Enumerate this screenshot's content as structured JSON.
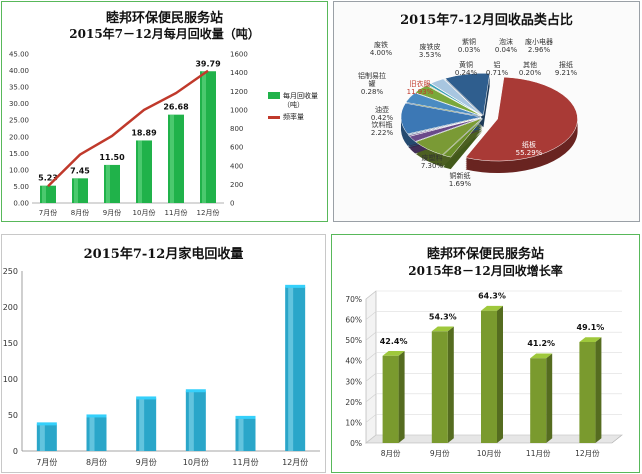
{
  "chart_data": [
    {
      "type": "bar",
      "title": "睦邦环保便民服务站",
      "subtitle": "2015年7－12月每月回收量（吨）",
      "categories": [
        "7月份",
        "8月份",
        "9月份",
        "10月份",
        "11月份",
        "12月份"
      ],
      "series": [
        {
          "name": "每月回收量（吨）",
          "values": [
            5.23,
            7.45,
            11.5,
            18.89,
            26.68,
            39.79
          ],
          "color": "#20b24a"
        },
        {
          "name": "频率量",
          "values": [
            180,
            520,
            720,
            1000,
            1180,
            1420
          ],
          "color": "#c0392b",
          "axis": "right"
        }
      ],
      "data_labels": [
        "5.23",
        "7.45",
        "11.50",
        "18.89",
        "26.68",
        "39.79"
      ],
      "ylim": [
        0,
        45
      ],
      "yticks": [
        "0.00",
        "5.00",
        "10.00",
        "15.00",
        "20.00",
        "25.00",
        "30.00",
        "35.00",
        "40.00",
        "45.00"
      ],
      "ylim_right": [
        0,
        1600
      ],
      "yticks_right": [
        "0",
        "200",
        "400",
        "600",
        "800",
        "1000",
        "1200",
        "1400",
        "1600"
      ],
      "legend": [
        "每月回收量（吨）",
        "频率量"
      ],
      "legend_position": "right"
    },
    {
      "type": "pie",
      "title": "2015年7-12月回收品类占比",
      "slices": [
        {
          "label": "纸板",
          "value": 55.29,
          "text": "纸板\n55.29%",
          "color": "#a93a36"
        },
        {
          "label": "铜新纸",
          "value": 1.69,
          "text": "铜新纸\n1.69%",
          "color": "#6b8f2a"
        },
        {
          "label": "废塑料",
          "value": 7.3,
          "text": "废塑料\n7.30%",
          "color": "#7a9a35"
        },
        {
          "label": "饮料瓶",
          "value": 2.22,
          "text": "饮料瓶\n2.22%",
          "color": "#6a4a8a"
        },
        {
          "label": "油壶",
          "value": 0.42,
          "text": "油壶\n0.42%",
          "color": "#5a3c78"
        },
        {
          "label": "铝制易拉罐",
          "value": 0.28,
          "text": "铝制易拉\n罐\n0.28%",
          "color": "#3f86b5"
        },
        {
          "label": "旧衣服",
          "value": 11.93,
          "text": "旧衣服\n11.93%",
          "color": "#3c78b5"
        },
        {
          "label": "废铁",
          "value": 4.0,
          "text": "废铁\n4.00%",
          "color": "#4a8bc2"
        },
        {
          "label": "废铁皮",
          "value": 3.53,
          "text": "废铁皮\n3.53%",
          "color": "#7aa83a"
        },
        {
          "label": "黄铜",
          "value": 0.24,
          "text": "黄铜\n0.24%",
          "color": "#c9a227"
        },
        {
          "label": "紫铜",
          "value": 0.03,
          "text": "紫铜\n0.03%",
          "color": "#8c6bb0"
        },
        {
          "label": "铝",
          "value": 0.71,
          "text": "铝\n0.71%",
          "color": "#3aa0b5"
        },
        {
          "label": "泡沫",
          "value": 0.04,
          "text": "泡沫\n0.04%",
          "color": "#9cc3e0"
        },
        {
          "label": "废小电器",
          "value": 2.96,
          "text": "废小电器\n2.96%",
          "color": "#a8c6e0"
        },
        {
          "label": "其他",
          "value": 0.2,
          "text": "其他\n0.20%",
          "color": "#c6d8ea"
        },
        {
          "label": "报纸",
          "value": 9.21,
          "text": "报纸\n9.21%",
          "color": "#2f5e8e"
        }
      ]
    },
    {
      "type": "bar",
      "title": "2015年7-12月家电回收量",
      "categories": [
        "7月份",
        "8月份",
        "9月份",
        "10月份",
        "11月份",
        "12月份"
      ],
      "values": [
        37,
        48,
        73,
        83,
        46,
        228
      ],
      "ylim": [
        0,
        250
      ],
      "yticks": [
        "0",
        "50",
        "100",
        "150",
        "200",
        "250"
      ],
      "color": "#2aa6c9"
    },
    {
      "type": "bar",
      "title": "睦邦环保便民服务站",
      "subtitle": "2015年8－12月回收增长率",
      "categories": [
        "8月份",
        "9月份",
        "10月份",
        "11月份",
        "12月份"
      ],
      "values": [
        42.4,
        54.3,
        64.3,
        41.2,
        49.1
      ],
      "data_labels": [
        "42.4%",
        "54.3%",
        "64.3%",
        "41.2%",
        "49.1%"
      ],
      "ylim": [
        0,
        70
      ],
      "yticks": [
        "0%",
        "10%",
        "20%",
        "30%",
        "40%",
        "50%",
        "60%",
        "70%"
      ],
      "color": "#7a9a2e"
    }
  ]
}
